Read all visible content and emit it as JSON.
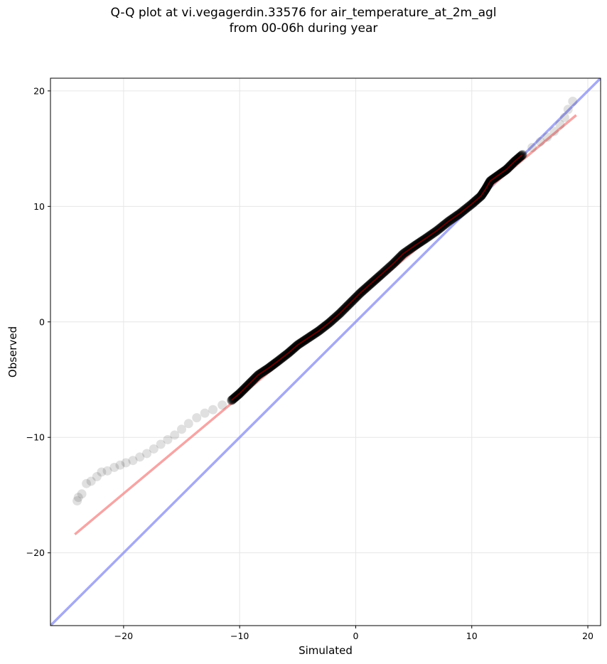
{
  "chart_data": {
    "type": "scatter",
    "title_line1": "Q-Q plot at vi.vegagerdin.33576 for air_temperature_at_2m_agl",
    "title_line2": "from 00-06h during year",
    "xlabel": "Simulated",
    "ylabel": "Observed",
    "xlim": [
      -26.3,
      21.1
    ],
    "ylim": [
      -26.3,
      21.1
    ],
    "xticks": [
      -20,
      -10,
      0,
      10,
      20
    ],
    "yticks": [
      -20,
      -10,
      0,
      10,
      20
    ],
    "grid": true,
    "quantiles_x": [
      -24.0,
      -23.9,
      -23.6,
      -23.2,
      -22.8,
      -22.3,
      -21.9,
      -21.4,
      -20.8,
      -20.3,
      -19.8,
      -19.2,
      -18.6,
      -18.0,
      -17.4,
      -16.8,
      -16.2,
      -15.6,
      -15.0,
      -14.4,
      -13.7,
      -13.0,
      -12.3,
      -11.5,
      -10.7,
      -10.0,
      -9.2,
      -8.4,
      -7.5,
      -6.7,
      -5.8,
      -5.0,
      -4.1,
      -3.2,
      -2.3,
      -1.4,
      -0.5,
      0.4,
      1.3,
      2.2,
      3.2,
      4.1,
      5.1,
      6.0,
      7.0,
      8.0,
      9.0,
      10.0,
      10.8,
      11.2,
      11.6,
      12.3,
      13.0,
      13.7,
      14.4,
      15.2,
      15.9,
      16.5,
      17.1,
      17.6,
      18.0,
      18.3,
      18.7
    ],
    "quantiles_y": [
      -15.5,
      -15.2,
      -14.9,
      -14.0,
      -13.8,
      -13.4,
      -13.0,
      -12.9,
      -12.6,
      -12.4,
      -12.2,
      -12.0,
      -11.7,
      -11.4,
      -11.0,
      -10.6,
      -10.2,
      -9.8,
      -9.3,
      -8.8,
      -8.3,
      -7.9,
      -7.6,
      -7.2,
      -6.8,
      -6.2,
      -5.4,
      -4.6,
      -4.0,
      -3.4,
      -2.7,
      -2.0,
      -1.4,
      -0.8,
      -0.1,
      0.7,
      1.6,
      2.5,
      3.3,
      4.1,
      5.0,
      5.9,
      6.6,
      7.2,
      7.9,
      8.7,
      9.4,
      10.2,
      10.9,
      11.5,
      12.2,
      12.7,
      13.2,
      13.9,
      14.5,
      15.1,
      15.6,
      16.0,
      16.5,
      17.1,
      17.7,
      18.4,
      19.1
    ],
    "fit_line": {
      "x": [
        -24.2,
        19.0
      ],
      "y": [
        -18.4,
        17.9
      ],
      "color": "#f28e8e"
    },
    "identity_line": {
      "x": [
        -26.3,
        21.1
      ],
      "y": [
        -26.3,
        21.1
      ],
      "color": "#8f94f0"
    },
    "point_color": "#000000",
    "trace_color": "#8b0000"
  }
}
